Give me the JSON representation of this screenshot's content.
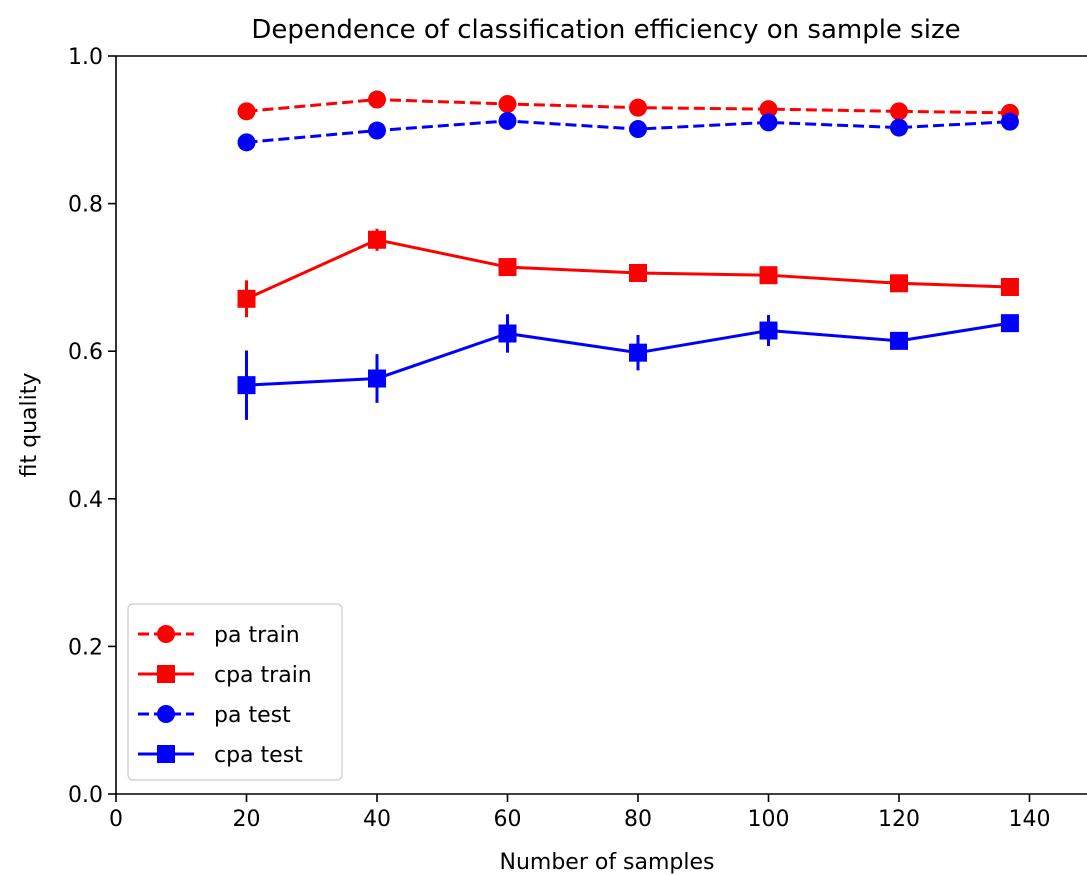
{
  "chart_data": {
    "type": "line",
    "title": "Dependence of classification efficiency on sample size",
    "xlabel": "Number of samples",
    "ylabel": "fit quality",
    "xlim": [
      0,
      148
    ],
    "ylim": [
      0.0,
      1.0
    ],
    "x_ticks": [
      0,
      20,
      40,
      60,
      80,
      100,
      120,
      140
    ],
    "y_ticks": [
      0.0,
      0.2,
      0.4,
      0.6,
      0.8,
      1.0
    ],
    "x_tick_labels": [
      "0",
      "20",
      "40",
      "60",
      "80",
      "100",
      "120",
      "140"
    ],
    "y_tick_labels": [
      "0.0",
      "0.2",
      "0.4",
      "0.6",
      "0.8",
      "1.0"
    ],
    "grid": false,
    "legend_position": "lower-left",
    "x": [
      20,
      40,
      60,
      80,
      100,
      120,
      137
    ],
    "series": [
      {
        "name": "pa train",
        "color": "#ff0000",
        "line_style": "dashed",
        "marker": "circle",
        "values": [
          0.925,
          0.941,
          0.935,
          0.93,
          0.928,
          0.925,
          0.923
        ],
        "errors": [
          0.003,
          0.004,
          0.003,
          0.003,
          0.002,
          0.003,
          0.002
        ]
      },
      {
        "name": "cpa train",
        "color": "#ff0000",
        "line_style": "solid",
        "marker": "square",
        "values": [
          0.671,
          0.751,
          0.714,
          0.706,
          0.703,
          0.692,
          0.687
        ],
        "errors": [
          0.025,
          0.015,
          0.01,
          0.006,
          0.006,
          0.005,
          0.004
        ]
      },
      {
        "name": "pa test",
        "color": "#0000ff",
        "line_style": "dashed",
        "marker": "circle",
        "values": [
          0.883,
          0.899,
          0.912,
          0.901,
          0.91,
          0.903,
          0.911
        ],
        "errors": [
          0.005,
          0.005,
          0.004,
          0.004,
          0.004,
          0.003,
          0.003
        ]
      },
      {
        "name": "cpa test",
        "color": "#0000ff",
        "line_style": "solid",
        "marker": "square",
        "values": [
          0.554,
          0.563,
          0.624,
          0.598,
          0.628,
          0.614,
          0.638
        ],
        "errors": [
          0.047,
          0.033,
          0.026,
          0.024,
          0.021,
          0.008,
          0.01
        ]
      }
    ]
  }
}
